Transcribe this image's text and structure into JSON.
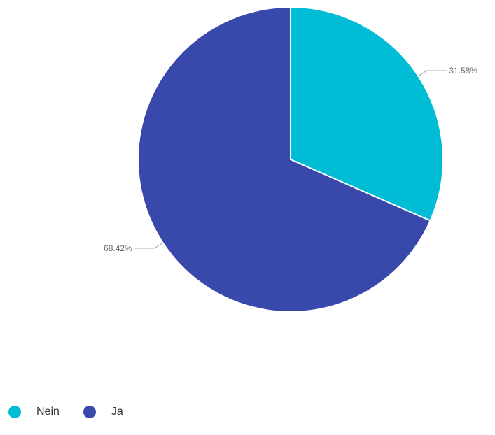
{
  "chart_data": {
    "type": "pie",
    "categories": [
      "Nein",
      "Ja"
    ],
    "values": [
      31.58,
      68.42
    ],
    "data_labels": [
      "31.58%",
      "68.42%"
    ],
    "colors": [
      "#00bcd4",
      "#3949ab"
    ],
    "legend_position": "bottom-left",
    "slice_border_color": "#ffffff"
  }
}
